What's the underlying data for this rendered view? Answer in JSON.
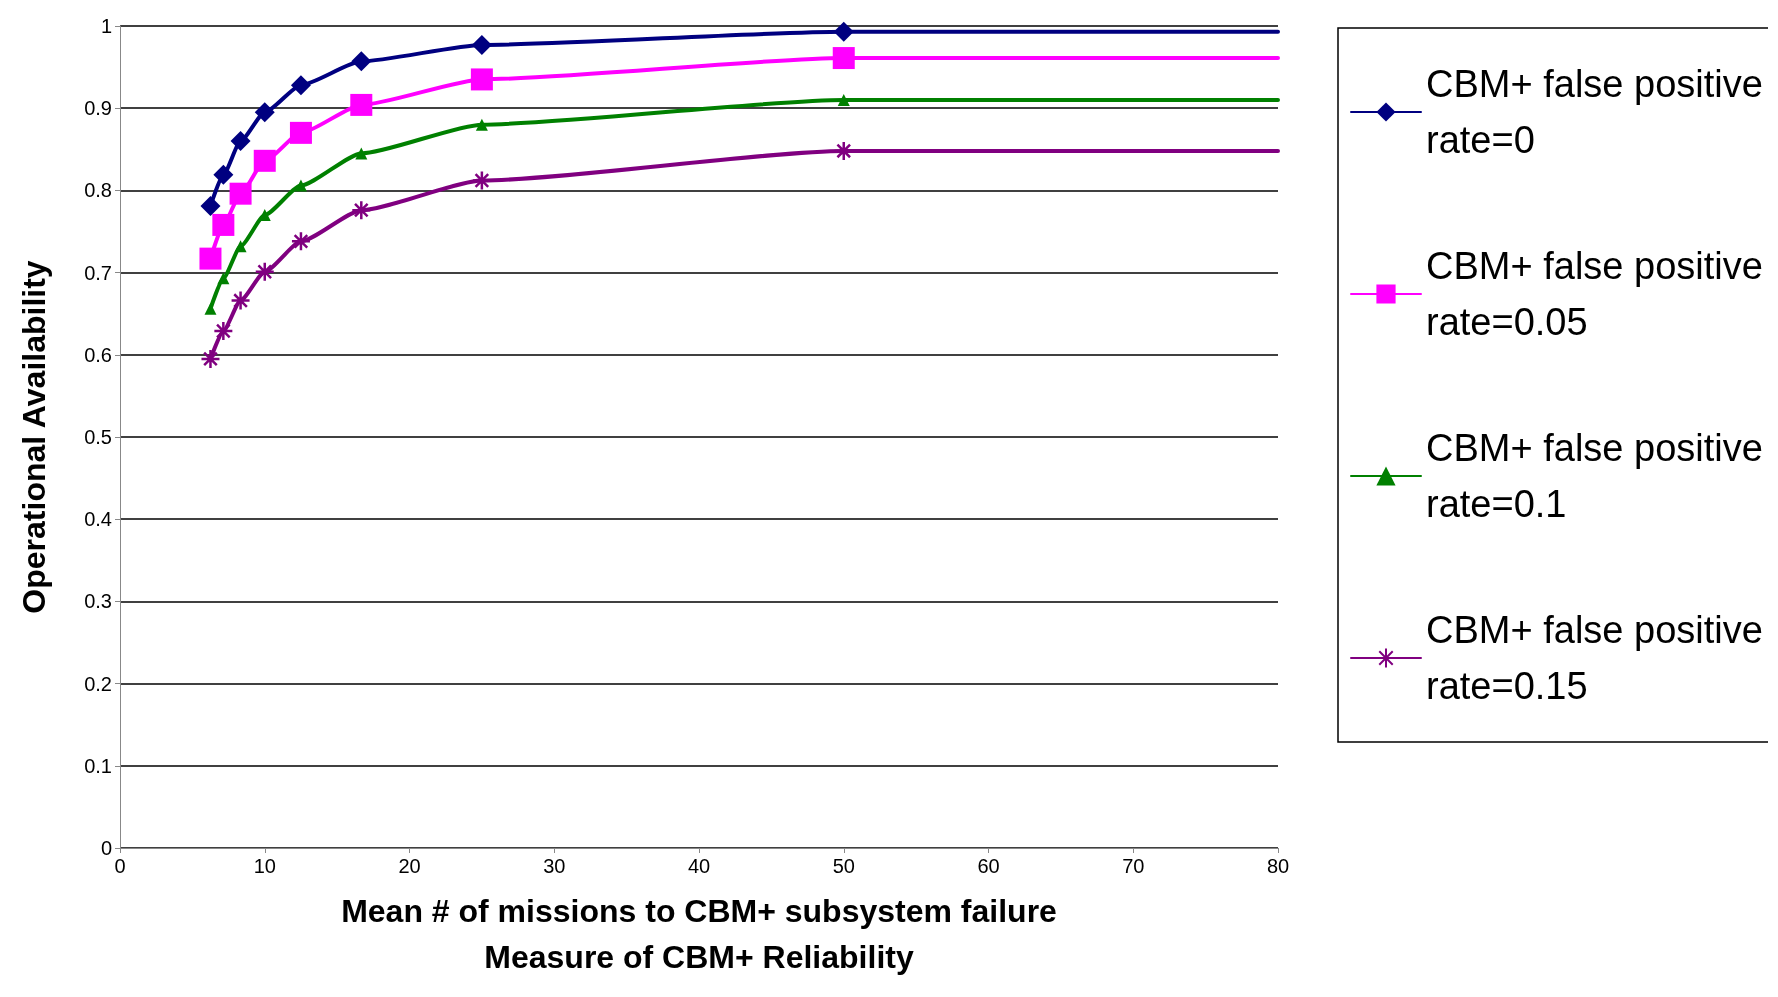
{
  "chart_data": {
    "type": "line",
    "xlabel": "Mean # of missions to CBM+ subsystem failure\nMeasure of CBM+ Reliability",
    "ylabel": "Operational Availability",
    "x": [
      6.25,
      7.14,
      8.33,
      10,
      12.5,
      16.67,
      25,
      50,
      80
    ],
    "series": [
      {
        "name": "CBM+ false positive rate=0",
        "color": "#000080",
        "marker": "diamond",
        "values": [
          0.781,
          0.819,
          0.86,
          0.895,
          0.928,
          0.957,
          0.977,
          0.993,
          0.993
        ]
      },
      {
        "name": "CBM+ false positive rate=0.05",
        "color": "#ff00ff",
        "marker": "square",
        "values": [
          0.717,
          0.758,
          0.796,
          0.836,
          0.87,
          0.904,
          0.935,
          0.961,
          0.961
        ]
      },
      {
        "name": "CBM+ false positive rate=0.1",
        "color": "#008000",
        "marker": "triangle",
        "values": [
          0.656,
          0.693,
          0.732,
          0.77,
          0.806,
          0.845,
          0.88,
          0.91,
          0.91
        ]
      },
      {
        "name": "CBM+ false positive rate=0.15",
        "color": "#800080",
        "marker": "cross",
        "values": [
          0.595,
          0.629,
          0.666,
          0.701,
          0.738,
          0.776,
          0.812,
          0.848,
          0.848
        ]
      }
    ],
    "xlim": [
      0,
      80
    ],
    "xticks": [
      0,
      10,
      20,
      30,
      40,
      50,
      60,
      70,
      80
    ],
    "ylim": [
      0,
      1
    ],
    "yticks": [
      0,
      0.1,
      0.2,
      0.3,
      0.4,
      0.5,
      0.6,
      0.7,
      0.8,
      0.9,
      1
    ],
    "grid": "y",
    "legend": "right",
    "line_style": "solid"
  }
}
